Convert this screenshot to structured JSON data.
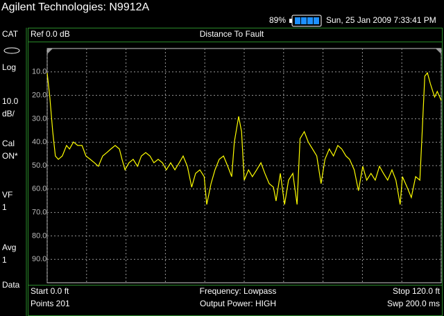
{
  "header": {
    "title": "Agilent Technologies: N9912A"
  },
  "status": {
    "battery": "89%",
    "datetime": "Sun, 25 Jan 2009 7:33:41 PM"
  },
  "sidebar": [
    [
      "CAT"
    ],
    [
      "Log"
    ],
    [
      "10.0",
      "dB/"
    ],
    [
      "Cal",
      "ON*"
    ],
    [
      "VF",
      "1"
    ],
    [
      "Avg",
      "1"
    ],
    [
      "Data"
    ]
  ],
  "chart_data": {
    "type": "line",
    "title": "Distance To Fault",
    "ref_label": "Ref 0.0 dB",
    "x": [
      0,
      0.8,
      1.7,
      2.5,
      3.4,
      4.6,
      5.9,
      6.8,
      8,
      9.3,
      10.6,
      11.8,
      13.1,
      14.4,
      15.6,
      16.9,
      18.2,
      19.4,
      20.7,
      22,
      22.8,
      23.7,
      24.9,
      26.2,
      27.5,
      28.7,
      30,
      31.3,
      32.5,
      33.8,
      35.1,
      36.3,
      37.6,
      38.9,
      40.2,
      41.4,
      42.7,
      44,
      45.2,
      46.5,
      47.8,
      48.6,
      49.9,
      51.1,
      52.4,
      53.7,
      55,
      56.2,
      57,
      58.3,
      59.2,
      60,
      61.3,
      62.5,
      63.8,
      65.1,
      66.3,
      67.6,
      68.9,
      69.7,
      71,
      72.3,
      73.5,
      74.8,
      76.1,
      77,
      78.3,
      79.5,
      80.8,
      82.1,
      83.4,
      84.6,
      85.9,
      87.2,
      88.5,
      89.7,
      91,
      92.1,
      93.5,
      94.8,
      96.1,
      97.3,
      98.6,
      99.9,
      101.2,
      102.4,
      103.7,
      105,
      106.2,
      107.5,
      108.2,
      109.6,
      110.9,
      112.2,
      113.5,
      114.1,
      115,
      115.8,
      116.7,
      118,
      118.8,
      120
    ],
    "values": [
      10.4,
      20.7,
      35.5,
      45.9,
      47.3,
      45.9,
      41.4,
      42.9,
      39.9,
      41.4,
      41.4,
      45.9,
      47.3,
      48.8,
      50.3,
      45.9,
      44.4,
      42.9,
      41.4,
      42.9,
      47.3,
      51.8,
      48.8,
      47.3,
      50.3,
      45.9,
      44.4,
      45.9,
      48.8,
      47.3,
      48.8,
      51.8,
      48.8,
      51.8,
      48.8,
      45.9,
      50.3,
      59.2,
      53.3,
      51.8,
      54.7,
      66.6,
      57.7,
      51.8,
      47.3,
      45.9,
      50.3,
      54.7,
      39.9,
      29,
      35.5,
      56.2,
      51.8,
      54.7,
      51.8,
      48.8,
      53.3,
      57.7,
      59.2,
      65.1,
      53.3,
      66.6,
      56.2,
      53.3,
      66.6,
      38.5,
      35.5,
      39.9,
      42.9,
      45.9,
      57.7,
      47.3,
      42.9,
      45.9,
      41.4,
      42.9,
      45.9,
      47.3,
      51.8,
      60.7,
      50.3,
      56.2,
      53.3,
      56.2,
      50.3,
      53.3,
      56.2,
      51.8,
      56.2,
      66.6,
      54.7,
      59.2,
      63.6,
      54.7,
      56.2,
      38.5,
      11.8,
      10.4,
      15.1,
      20.7,
      18.3,
      22.2
    ],
    "color": "#ffff00",
    "xlim": [
      0,
      120
    ],
    "xticks": [
      0,
      12,
      24,
      36,
      48,
      60,
      72,
      84,
      96,
      108,
      120
    ],
    "ylim": [
      100,
      0
    ],
    "yticks": [
      {
        "value": 10,
        "label": "10.0"
      },
      {
        "value": 20,
        "label": "20.0"
      },
      {
        "value": 30,
        "label": "30.0"
      },
      {
        "value": 40,
        "label": "40.0"
      },
      {
        "value": 50,
        "label": "50.0"
      },
      {
        "value": 60,
        "label": "60.0"
      },
      {
        "value": 70,
        "label": "70.0"
      },
      {
        "value": 80,
        "label": "80.0"
      },
      {
        "value": 90,
        "label": "90.0"
      }
    ],
    "grid": true
  },
  "footer": {
    "left": [
      "Start 0.0 ft",
      "Points 201"
    ],
    "center": [
      "Frequency: Lowpass",
      "Output Power: HIGH"
    ],
    "right": [
      "Stop 120.0 ft",
      "Swp 200.0 ms"
    ]
  }
}
